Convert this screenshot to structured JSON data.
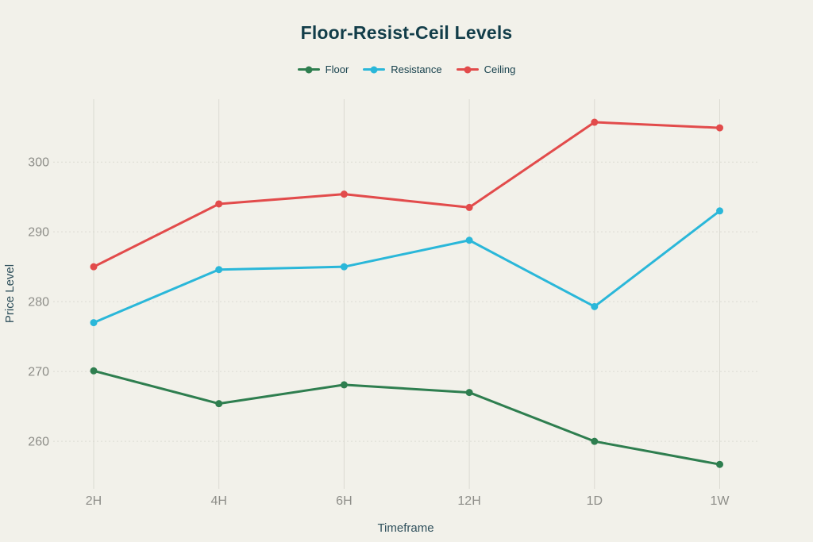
{
  "page": {
    "background": "#f2f1ea"
  },
  "header": {
    "title": "Floor-Resist-Ceil Levels"
  },
  "legend": {
    "items": [
      {
        "label": "Floor",
        "color": "#2e7e4f"
      },
      {
        "label": "Resistance",
        "color": "#2ab7d9"
      },
      {
        "label": "Ceiling",
        "color": "#e24b4b"
      }
    ]
  },
  "chart_data": {
    "type": "line",
    "title": "Floor-Resist-Ceil Levels",
    "xlabel": "Timeframe",
    "ylabel": "Price Level",
    "categories": [
      "2H",
      "4H",
      "6H",
      "12H",
      "1D",
      "1W"
    ],
    "series": [
      {
        "name": "Floor",
        "color": "#2e7e4f",
        "values": [
          270.1,
          265.4,
          268.1,
          267.0,
          260.0,
          256.7
        ]
      },
      {
        "name": "Resistance",
        "color": "#2ab7d9",
        "values": [
          277.0,
          284.6,
          285.0,
          288.8,
          279.3,
          293.0
        ]
      },
      {
        "name": "Ceiling",
        "color": "#e24b4b",
        "values": [
          285.0,
          294.0,
          295.4,
          293.5,
          305.7,
          304.9
        ]
      }
    ],
    "yticks": [
      260,
      270,
      280,
      290,
      300
    ],
    "ylim": [
      253.2,
      309.0
    ],
    "grid": true,
    "legend_position": "top",
    "marker": "circle",
    "line_width": 3,
    "colors": {
      "background": "#f2f1ea",
      "grid": "#d9d8d0",
      "tick_label": "#8d8d88",
      "axis_title": "#2f505c",
      "title": "#123d49"
    }
  }
}
